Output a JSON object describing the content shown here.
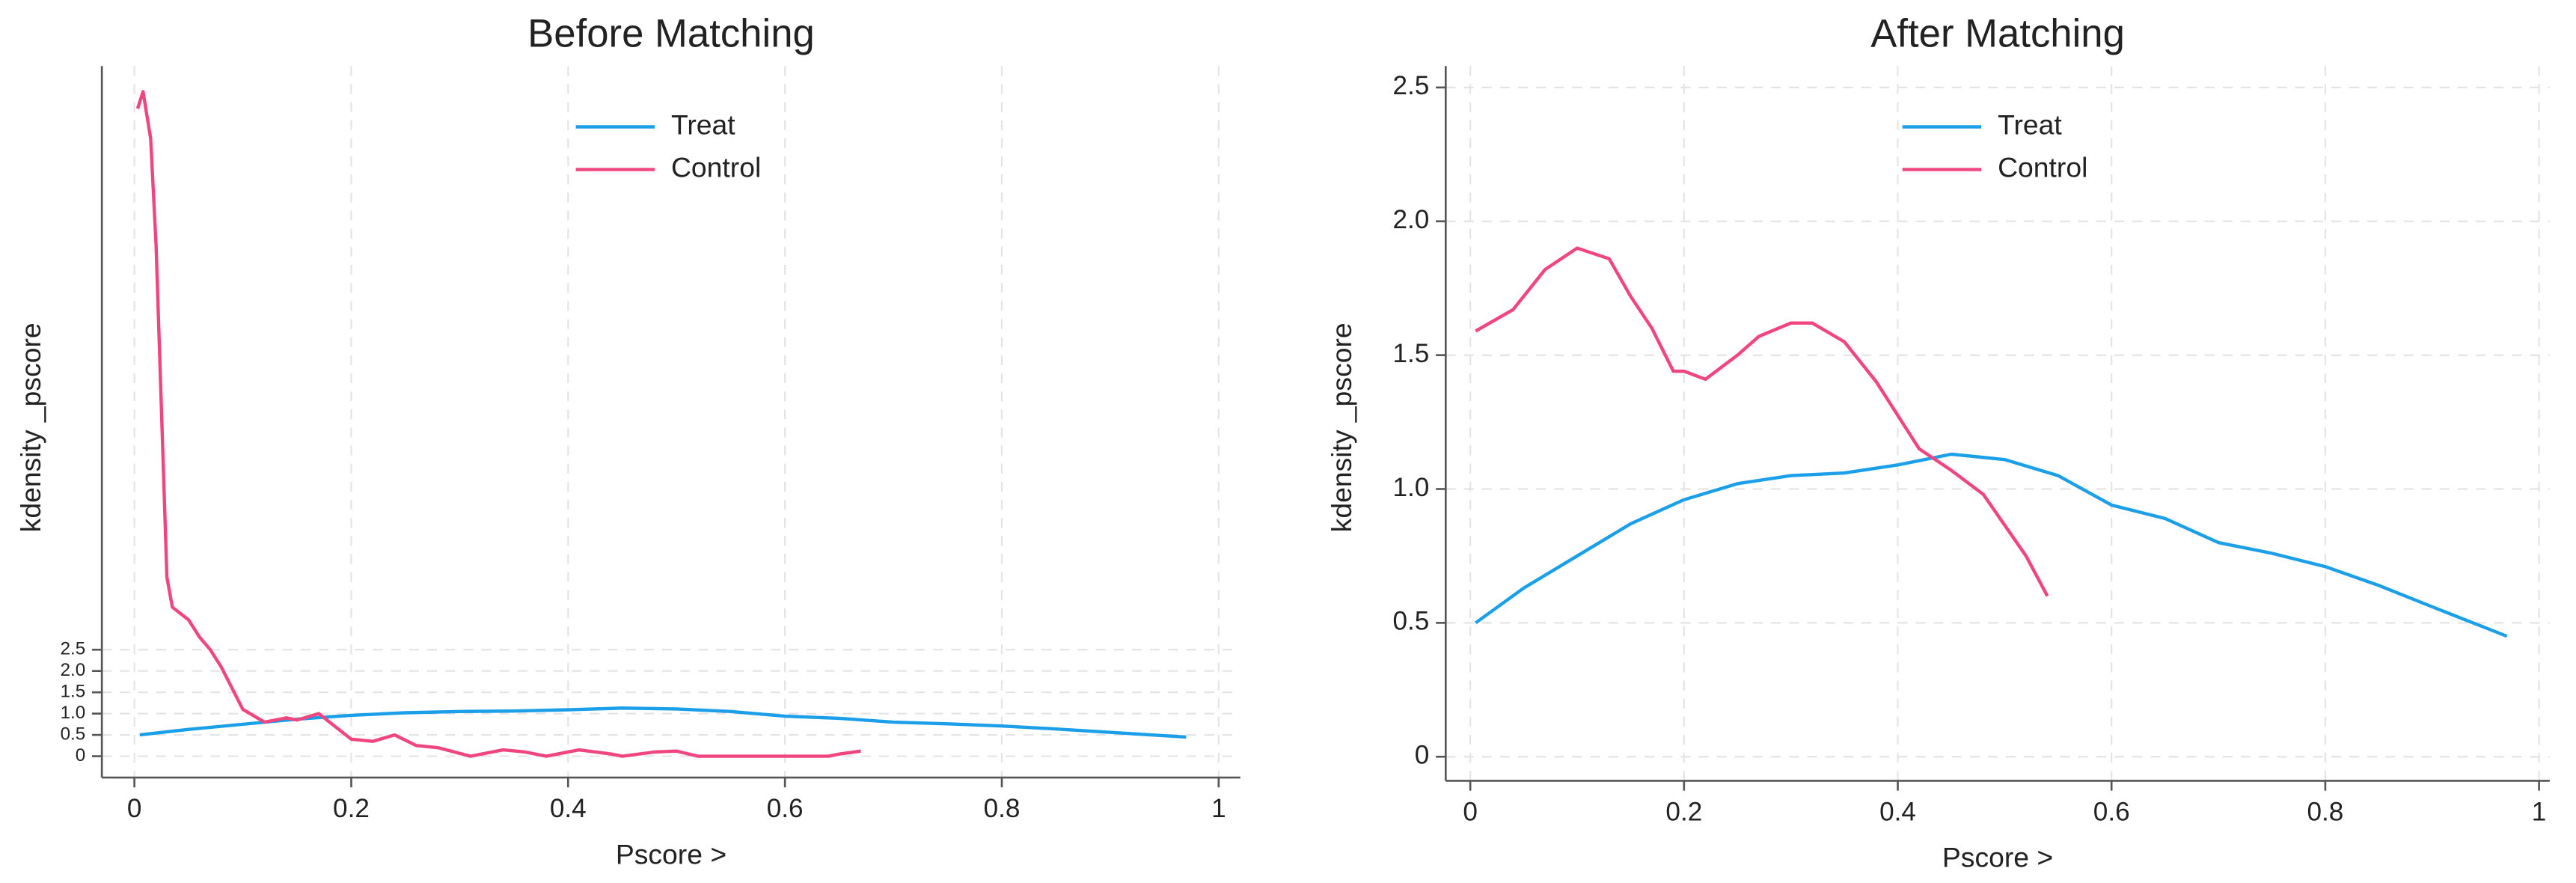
{
  "chart_data": [
    {
      "type": "line",
      "title": "Before Matching",
      "x_label": "Pscore >",
      "y_label": "kdensity _pscore",
      "xlim": [
        -0.03,
        1.02
      ],
      "ylim": [
        -0.5,
        16.2
      ],
      "xticks": [
        0,
        0.2,
        0.4,
        0.6,
        0.8,
        1
      ],
      "yticks": [
        0,
        0.5,
        {
          "value": 1,
          "label": "1.0"
        },
        1.5,
        {
          "value": 2,
          "label": "2.0"
        },
        2.5
      ],
      "grid": true,
      "legend": "top",
      "series": [
        {
          "name": "Treat",
          "color": "#1a9fe8",
          "x": [
            0.005,
            0.05,
            0.1,
            0.15,
            0.2,
            0.25,
            0.3,
            0.35,
            0.4,
            0.45,
            0.5,
            0.55,
            0.6,
            0.65,
            0.7,
            0.75,
            0.8,
            0.85,
            0.9,
            0.97
          ],
          "values": [
            0.5,
            0.63,
            0.75,
            0.87,
            0.96,
            1.02,
            1.05,
            1.06,
            1.09,
            1.13,
            1.11,
            1.05,
            0.94,
            0.89,
            0.8,
            0.76,
            0.71,
            0.64,
            0.56,
            0.45
          ]
        },
        {
          "name": "Control",
          "color": "#f0457f",
          "x": [
            0.003,
            0.008,
            0.015,
            0.02,
            0.03,
            0.035,
            0.05,
            0.06,
            0.07,
            0.08,
            0.1,
            0.12,
            0.14,
            0.15,
            0.17,
            0.18,
            0.2,
            0.22,
            0.24,
            0.26,
            0.28,
            0.31,
            0.34,
            0.36,
            0.38,
            0.41,
            0.44,
            0.45,
            0.48,
            0.5,
            0.52,
            0.6,
            0.64,
            0.65,
            0.67
          ],
          "values": [
            15.2,
            15.6,
            14.5,
            12,
            4.2,
            3.5,
            3.2,
            2.8,
            2.5,
            2.1,
            1.1,
            0.8,
            0.9,
            0.85,
            1.0,
            0.8,
            0.4,
            0.35,
            0.5,
            0.25,
            0.2,
            0.0,
            0.15,
            0.1,
            0.0,
            0.15,
            0.05,
            0.0,
            0.1,
            0.12,
            0.0,
            0.0,
            0.0,
            0.05,
            0.12
          ]
        }
      ]
    },
    {
      "type": "line",
      "title": "After Matching",
      "x_label": "Pscore >",
      "y_label": "kdensity _pscore",
      "xlim": [
        -0.023,
        1.01
      ],
      "ylim": [
        -0.09,
        2.58
      ],
      "xticks": [
        0,
        0.2,
        0.4,
        0.6,
        0.8,
        1
      ],
      "yticks": [
        0,
        0.5,
        {
          "value": 1,
          "label": "1.0"
        },
        1.5,
        {
          "value": 2,
          "label": "2.0"
        },
        2.5
      ],
      "grid": true,
      "legend": "top",
      "series": [
        {
          "name": "Treat",
          "color": "#1a9fe8",
          "x": [
            0.005,
            0.05,
            0.1,
            0.15,
            0.2,
            0.25,
            0.3,
            0.35,
            0.4,
            0.45,
            0.5,
            0.55,
            0.6,
            0.65,
            0.7,
            0.75,
            0.8,
            0.85,
            0.9,
            0.97
          ],
          "values": [
            0.5,
            0.63,
            0.75,
            0.87,
            0.96,
            1.02,
            1.05,
            1.06,
            1.09,
            1.13,
            1.11,
            1.05,
            0.94,
            0.89,
            0.8,
            0.76,
            0.71,
            0.64,
            0.56,
            0.45
          ]
        },
        {
          "name": "Control",
          "color": "#f0457f",
          "x": [
            0.005,
            0.04,
            0.07,
            0.1,
            0.13,
            0.15,
            0.17,
            0.19,
            0.2,
            0.22,
            0.25,
            0.27,
            0.3,
            0.32,
            0.35,
            0.38,
            0.42,
            0.45,
            0.48,
            0.52,
            0.54
          ],
          "values": [
            1.59,
            1.67,
            1.82,
            1.9,
            1.86,
            1.72,
            1.6,
            1.44,
            1.44,
            1.41,
            1.5,
            1.57,
            1.62,
            1.62,
            1.55,
            1.4,
            1.15,
            1.07,
            0.98,
            0.75,
            0.6
          ]
        }
      ]
    }
  ]
}
